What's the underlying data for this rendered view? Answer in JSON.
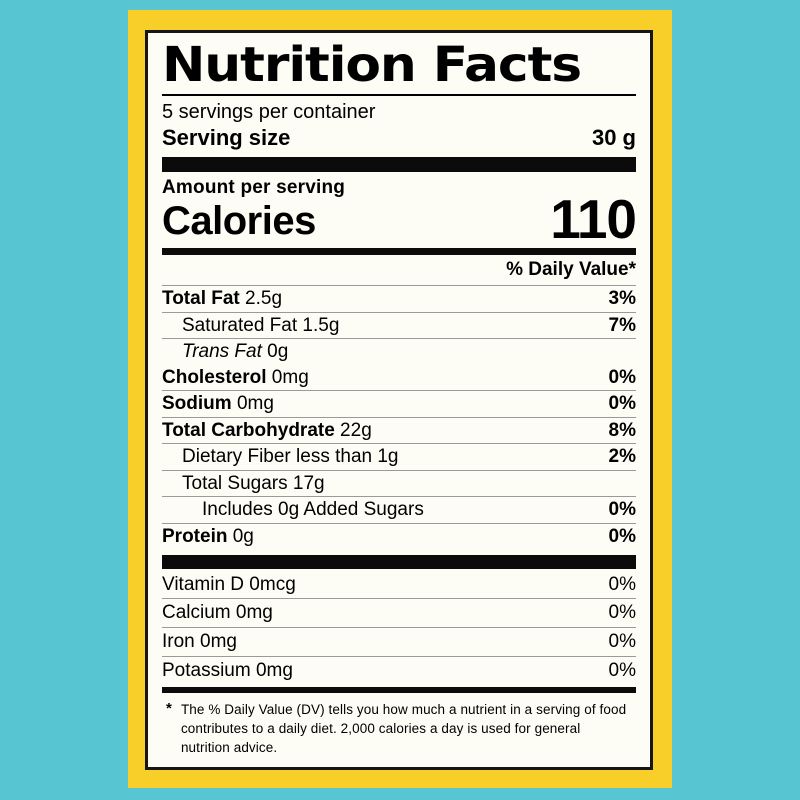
{
  "colors": {
    "background": "#58C5D2",
    "card": "#F8CE28",
    "panel": "#FDFDF6",
    "ink": "#000000",
    "hairline": "#9a9a9a"
  },
  "label": {
    "title": "Nutrition Facts",
    "servings_per_container": "5 servings per container",
    "serving_size": {
      "label": "Serving size",
      "value": "30 g"
    },
    "amount_per_serving": "Amount per serving",
    "calories": {
      "label": "Calories",
      "value": "110"
    },
    "daily_value_header": "% Daily Value*",
    "nutrients": [
      {
        "name": "Total Fat",
        "amount": "2.5g",
        "dv": "3%",
        "bold": true,
        "italic": false,
        "indent": 0,
        "dv_bold": true
      },
      {
        "name": "Saturated Fat",
        "amount": "1.5g",
        "dv": "7%",
        "bold": false,
        "italic": false,
        "indent": 1,
        "dv_bold": true
      },
      {
        "name": "Trans Fat",
        "amount": "0g",
        "dv": "",
        "bold": false,
        "italic": true,
        "indent": 1,
        "dv_bold": false
      },
      {
        "name": "Cholesterol",
        "amount": "0mg",
        "dv": "0%",
        "bold": true,
        "italic": false,
        "indent": 0,
        "dv_bold": true
      },
      {
        "name": "Sodium",
        "amount": "0mg",
        "dv": "0%",
        "bold": true,
        "italic": false,
        "indent": 0,
        "dv_bold": true
      },
      {
        "name": "Total Carbohydrate",
        "amount": "22g",
        "dv": "8%",
        "bold": true,
        "italic": false,
        "indent": 0,
        "dv_bold": true
      },
      {
        "name": "Dietary Fiber",
        "amount": "less than 1g",
        "dv": "2%",
        "bold": false,
        "italic": false,
        "indent": 1,
        "dv_bold": true
      },
      {
        "name": "Total Sugars",
        "amount": "17g",
        "dv": "",
        "bold": false,
        "italic": false,
        "indent": 1,
        "dv_bold": false
      },
      {
        "name": "Includes 0g Added Sugars",
        "amount": "",
        "dv": "0%",
        "bold": false,
        "italic": false,
        "indent": 2,
        "dv_bold": true
      },
      {
        "name": "Protein",
        "amount": "0g",
        "dv": "0%",
        "bold": true,
        "italic": false,
        "indent": 0,
        "dv_bold": true
      }
    ],
    "vitamins": [
      {
        "name": "Vitamin D",
        "amount": "0mcg",
        "dv": "0%"
      },
      {
        "name": "Calcium",
        "amount": "0mg",
        "dv": "0%"
      },
      {
        "name": "Iron",
        "amount": "0mg",
        "dv": "0%"
      },
      {
        "name": "Potassium",
        "amount": "0mg",
        "dv": "0%"
      }
    ],
    "footnote": {
      "marker": "*",
      "text": "The % Daily Value (DV) tells you how much a nutrient in a serving of food contributes to a daily diet. 2,000 calories a day is used for general nutrition advice."
    }
  }
}
